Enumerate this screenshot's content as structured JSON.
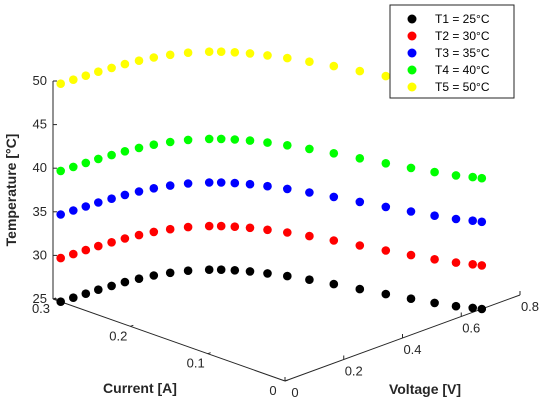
{
  "chart_data": {
    "type": "scatter",
    "view": "3d",
    "xlabel": "Current [A]",
    "ylabel": "Voltage [V]",
    "zlabel": "Temperature [°C]",
    "xlim": [
      0,
      0.3
    ],
    "ylim": [
      0,
      0.8
    ],
    "zlim": [
      25,
      50
    ],
    "x_ticks": [
      0,
      0.1,
      0.2,
      0.3
    ],
    "x_tick_labels": [
      "0",
      "0.1",
      "0.2",
      "0.3"
    ],
    "y_ticks": [
      0,
      0.2,
      0.4,
      0.6,
      0.8
    ],
    "y_tick_labels": [
      "0",
      "0.2",
      "0.4",
      "0.6",
      "0.8"
    ],
    "z_ticks": [
      25,
      30,
      35,
      40,
      45,
      50
    ],
    "z_tick_labels": [
      "25",
      "30",
      "35",
      "40",
      "45",
      "50"
    ],
    "grid": false,
    "legend_position": "top-right",
    "iv_curve": {
      "voltage": [
        0.0,
        0.04,
        0.08,
        0.12,
        0.16,
        0.2,
        0.24,
        0.28,
        0.32,
        0.36,
        0.4,
        0.42,
        0.44,
        0.46,
        0.48,
        0.5,
        0.52,
        0.54,
        0.56,
        0.58,
        0.6,
        0.62,
        0.64,
        0.66,
        0.67
      ],
      "current": [
        0.29,
        0.289,
        0.288,
        0.287,
        0.285,
        0.283,
        0.28,
        0.276,
        0.27,
        0.262,
        0.25,
        0.242,
        0.232,
        0.22,
        0.205,
        0.187,
        0.166,
        0.142,
        0.116,
        0.09,
        0.065,
        0.042,
        0.022,
        0.008,
        0.0
      ]
    },
    "series": [
      {
        "name": "T1 = 25°C",
        "temperature": 25,
        "color": "#000000"
      },
      {
        "name": "T2 = 30°C",
        "temperature": 30,
        "color": "#ff0000"
      },
      {
        "name": "T3 = 35°C",
        "temperature": 35,
        "color": "#0000ff"
      },
      {
        "name": "T4 = 40°C",
        "temperature": 40,
        "color": "#00ff00"
      },
      {
        "name": "T5 = 50°C",
        "temperature": 50,
        "color": "#ffff00"
      }
    ]
  }
}
